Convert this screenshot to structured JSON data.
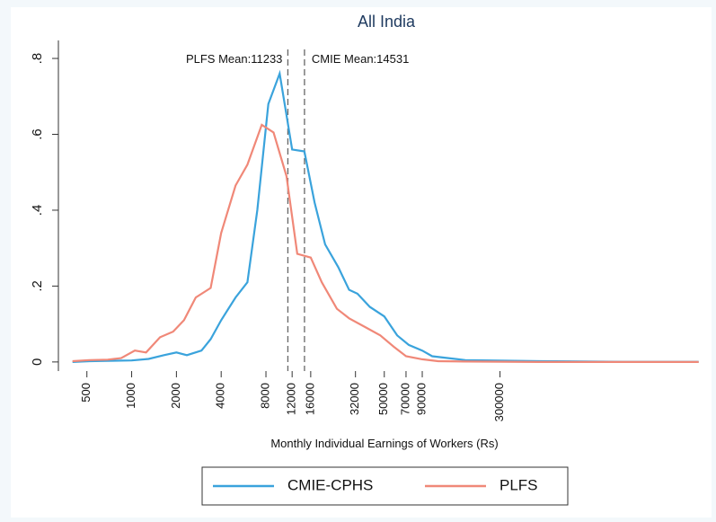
{
  "chart_data": {
    "type": "line",
    "title": "All India",
    "x_label": "Monthly Individual Earnings of Workers (Rs)",
    "x_scale": "log",
    "xlim": [
      300,
      7000000
    ],
    "ylim": [
      -0.024,
      0.883
    ],
    "xticks": [
      500,
      1000,
      2000,
      4000,
      8000,
      12000,
      16000,
      32000,
      50000,
      70000,
      90000,
      300000
    ],
    "yticks": [
      0,
      {
        "value": 0.2,
        "label": ".2"
      },
      {
        "value": 0.4,
        "label": ".4"
      },
      {
        "value": 0.6,
        "label": ".6"
      },
      {
        "value": 0.8,
        "label": ".8"
      }
    ],
    "legend_position": "bottom",
    "series": [
      {
        "name": "CMIE-CPHS",
        "color": "#3aa3dc",
        "x": [
          400,
          520,
          690,
          1000,
          1300,
          1650,
          2000,
          2350,
          2950,
          3400,
          4000,
          5000,
          6000,
          7000,
          8300,
          9900,
          12000,
          14500,
          17000,
          20000,
          24500,
          29000,
          33000,
          40000,
          50000,
          61000,
          73000,
          90000,
          105000,
          135000,
          175000,
          260000,
          550000,
          2000000,
          6500000
        ],
        "values": [
          0.0,
          0.002,
          0.003,
          0.004,
          0.008,
          0.018,
          0.025,
          0.018,
          0.03,
          0.06,
          0.11,
          0.17,
          0.21,
          0.4,
          0.68,
          0.76,
          0.56,
          0.555,
          0.42,
          0.31,
          0.25,
          0.19,
          0.18,
          0.145,
          0.12,
          0.07,
          0.045,
          0.03,
          0.015,
          0.01,
          0.005,
          0.004,
          0.002,
          0.0005,
          0.0005
        ]
      },
      {
        "name": "PLFS",
        "color": "#f08878",
        "x": [
          400,
          520,
          690,
          850,
          1050,
          1250,
          1550,
          1900,
          2250,
          2700,
          3400,
          4000,
          5000,
          6000,
          7500,
          9000,
          11000,
          13000,
          16000,
          19000,
          24000,
          29000,
          38000,
          47000,
          58000,
          70000,
          90000,
          115000,
          175000,
          550000,
          6500000
        ],
        "values": [
          0.002,
          0.005,
          0.006,
          0.01,
          0.03,
          0.025,
          0.065,
          0.08,
          0.11,
          0.17,
          0.195,
          0.34,
          0.465,
          0.52,
          0.625,
          0.605,
          0.49,
          0.285,
          0.275,
          0.21,
          0.14,
          0.115,
          0.09,
          0.07,
          0.04,
          0.015,
          0.007,
          0.002,
          0.001,
          0,
          0
        ]
      }
    ],
    "vlines": [
      {
        "x": 11233,
        "label": "PLFS Mean:11233"
      },
      {
        "x": 14531,
        "label": "CMIE Mean:14531"
      }
    ]
  }
}
